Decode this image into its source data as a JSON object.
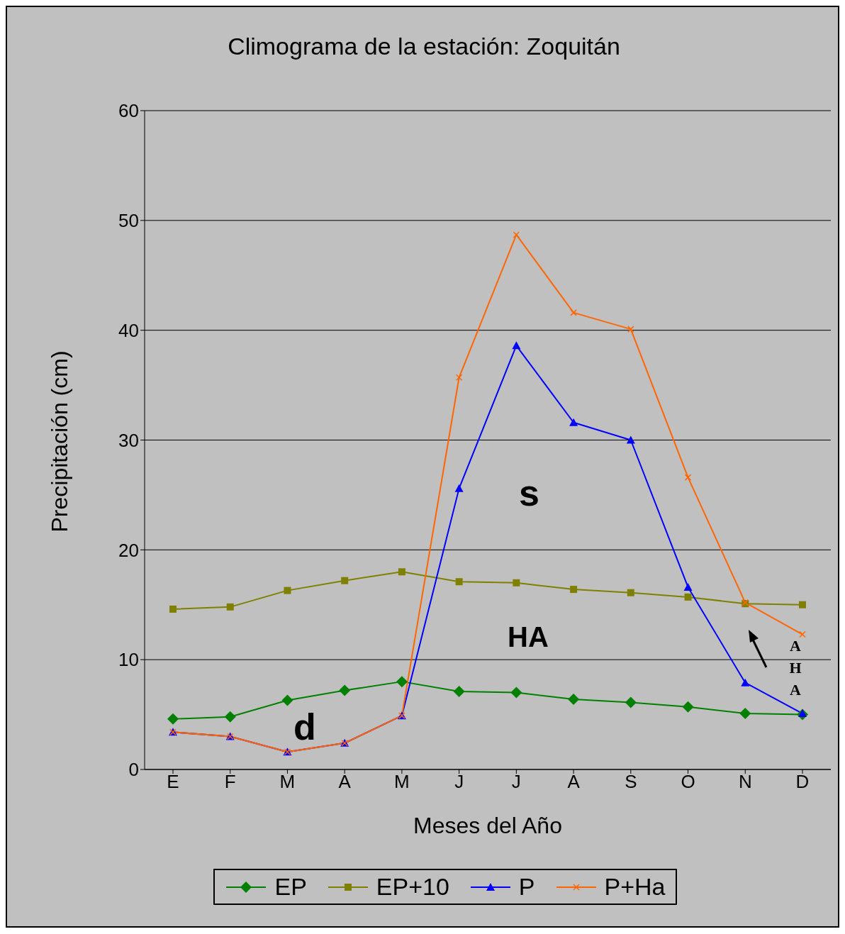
{
  "chart_data": {
    "type": "line",
    "title": "Climograma de la estación: Zoquitán",
    "xlabel": "Meses del Año",
    "ylabel": "Precipitación (cm)",
    "categories": [
      "E",
      "F",
      "M",
      "A",
      "M",
      "J",
      "J",
      "A",
      "S",
      "O",
      "N",
      "D"
    ],
    "series": [
      {
        "name": "EP",
        "color": "#008000",
        "marker": "diamond",
        "values": [
          4.6,
          4.8,
          6.3,
          7.2,
          8.0,
          7.1,
          7.0,
          6.4,
          6.1,
          5.7,
          5.1,
          5.0
        ]
      },
      {
        "name": "EP+10",
        "color": "#808000",
        "marker": "square",
        "values": [
          14.6,
          14.8,
          16.3,
          17.2,
          18.0,
          17.1,
          17.0,
          16.4,
          16.1,
          15.7,
          15.1,
          15.0
        ]
      },
      {
        "name": "P",
        "color": "#0000ff",
        "marker": "triangle",
        "values": [
          3.4,
          3.0,
          1.6,
          2.4,
          4.9,
          25.6,
          38.6,
          31.6,
          30.0,
          16.6,
          7.9,
          5.1
        ]
      },
      {
        "name": "P+Ha",
        "color": "#ff6600",
        "marker": "cross",
        "values": [
          3.4,
          3.0,
          1.6,
          2.4,
          4.9,
          35.7,
          48.7,
          41.6,
          40.1,
          26.6,
          15.2,
          12.3
        ]
      }
    ],
    "ylim": [
      0,
      60
    ],
    "yticks": [
      0,
      10,
      20,
      30,
      40,
      50,
      60
    ],
    "grid": "y",
    "legend": "bottom",
    "line_style": "solid",
    "annotations": [
      "s",
      "HA",
      "d",
      "AHA"
    ]
  }
}
